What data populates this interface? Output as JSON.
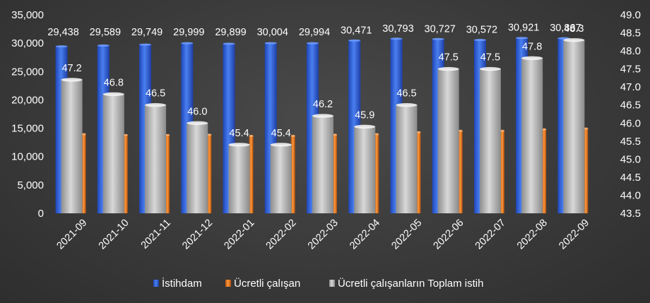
{
  "chart_data": {
    "type": "bar",
    "categories": [
      "2021-09",
      "2021-10",
      "2021-11",
      "2021-12",
      "2022-01",
      "2022-02",
      "2022-03",
      "2022-04",
      "2022-05",
      "2022-06",
      "2022-07",
      "2022-08",
      "2022-09"
    ],
    "series": [
      {
        "name": "İstihdam",
        "axis": "left",
        "color": "#2f5fd8",
        "values": [
          29438,
          29589,
          29749,
          29999,
          29899,
          30004,
          29994,
          30471,
          30793,
          30727,
          30572,
          30921,
          30867
        ],
        "labels": [
          "29,438",
          "29,589",
          "29,749",
          "29,999",
          "29,899",
          "30,004",
          "29,994",
          "30,471",
          "30,793",
          "30,727",
          "30,572",
          "30,921",
          "30,867"
        ]
      },
      {
        "name": "Ücretli çalışan",
        "axis": "left",
        "color": "#e0701c",
        "values": [
          13950,
          13800,
          13800,
          13850,
          13650,
          13650,
          13850,
          13950,
          14300,
          14550,
          14550,
          14800,
          14950
        ]
      },
      {
        "name": "Ücretli çalışanların Toplam istih",
        "axis": "right",
        "color": "#b8b8b8",
        "values": [
          47.2,
          46.8,
          46.5,
          46.0,
          45.4,
          45.4,
          46.2,
          45.9,
          46.5,
          47.5,
          47.5,
          47.8,
          48.3
        ],
        "labels": [
          "47.2",
          "46.8",
          "46.5",
          "46.0",
          "45.4",
          "45.4",
          "46.2",
          "45.9",
          "46.5",
          "47.5",
          "47.5",
          "47.8",
          "48.3"
        ]
      }
    ],
    "y_left": {
      "lim": [
        0,
        35000
      ],
      "ticks": [
        0,
        5000,
        10000,
        15000,
        20000,
        25000,
        30000,
        35000
      ],
      "tick_labels": [
        "0",
        "5,000",
        "10,000",
        "15,000",
        "20,000",
        "25,000",
        "30,000",
        "35,000"
      ]
    },
    "y_right": {
      "lim": [
        43.5,
        49.0
      ],
      "ticks": [
        43.5,
        44.0,
        44.5,
        45.0,
        45.5,
        46.0,
        46.5,
        47.0,
        47.5,
        48.0,
        48.5,
        49.0
      ],
      "tick_labels": [
        "43.5",
        "44.0",
        "44.5",
        "45.0",
        "45.5",
        "46.0",
        "46.5",
        "47.0",
        "47.5",
        "48.0",
        "48.5",
        "49.0"
      ]
    },
    "grid": false,
    "legend": "bottom",
    "style": "3d-columns"
  }
}
